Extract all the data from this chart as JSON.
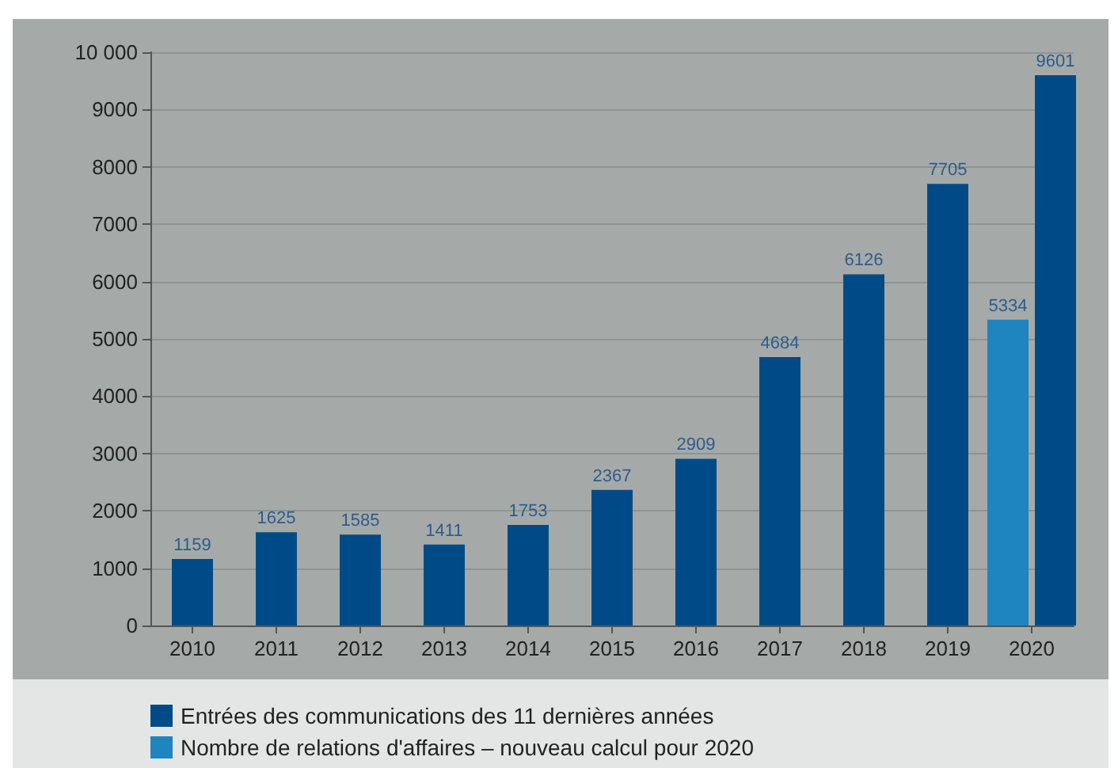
{
  "chart_data": {
    "type": "bar",
    "categories": [
      "2010",
      "2011",
      "2012",
      "2013",
      "2014",
      "2015",
      "2016",
      "2017",
      "2018",
      "2019",
      "2020"
    ],
    "series": [
      {
        "name": "Entrées des communications des 11 dernières années",
        "color": "#004b87",
        "values": [
          1159,
          1625,
          1585,
          1411,
          1753,
          2367,
          2909,
          4684,
          6126,
          7705,
          9601
        ]
      },
      {
        "name": "Nombre de relations d'affaires – nouveau calcul pour 2020",
        "color": "#1e85c0",
        "values": [
          null,
          null,
          null,
          null,
          null,
          null,
          null,
          null,
          null,
          null,
          5334
        ]
      }
    ],
    "ylim": [
      0,
      10000
    ],
    "yticks": [
      0,
      1000,
      2000,
      3000,
      4000,
      5000,
      6000,
      7000,
      8000,
      9000,
      {
        "value": 10000,
        "label": "10 000"
      }
    ],
    "grid": "y",
    "legend": "bottom",
    "data_labels": true
  }
}
